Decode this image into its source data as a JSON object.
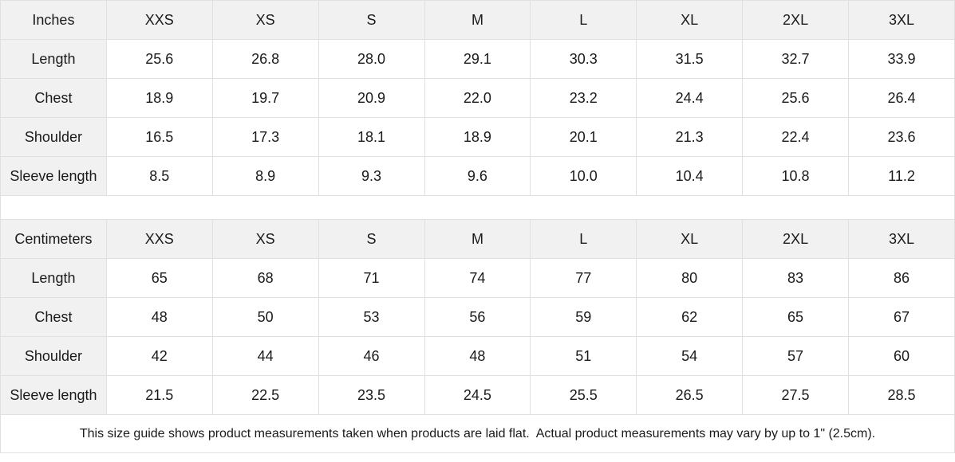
{
  "chart_data": [
    {
      "type": "table",
      "unit_label": "Inches",
      "columns": [
        "XXS",
        "XS",
        "S",
        "M",
        "L",
        "XL",
        "2XL",
        "3XL"
      ],
      "rows": [
        {
          "label": "Length",
          "values": [
            "25.6",
            "26.8",
            "28.0",
            "29.1",
            "30.3",
            "31.5",
            "32.7",
            "33.9"
          ]
        },
        {
          "label": "Chest",
          "values": [
            "18.9",
            "19.7",
            "20.9",
            "22.0",
            "23.2",
            "24.4",
            "25.6",
            "26.4"
          ]
        },
        {
          "label": "Shoulder",
          "values": [
            "16.5",
            "17.3",
            "18.1",
            "18.9",
            "20.1",
            "21.3",
            "22.4",
            "23.6"
          ]
        },
        {
          "label": "Sleeve length",
          "values": [
            "8.5",
            "8.9",
            "9.3",
            "9.6",
            "10.0",
            "10.4",
            "10.8",
            "11.2"
          ]
        }
      ]
    },
    {
      "type": "table",
      "unit_label": "Centimeters",
      "columns": [
        "XXS",
        "XS",
        "S",
        "M",
        "L",
        "XL",
        "2XL",
        "3XL"
      ],
      "rows": [
        {
          "label": "Length",
          "values": [
            "65",
            "68",
            "71",
            "74",
            "77",
            "80",
            "83",
            "86"
          ]
        },
        {
          "label": "Chest",
          "values": [
            "48",
            "50",
            "53",
            "56",
            "59",
            "62",
            "65",
            "67"
          ]
        },
        {
          "label": "Shoulder",
          "values": [
            "42",
            "44",
            "46",
            "48",
            "51",
            "54",
            "57",
            "60"
          ]
        },
        {
          "label": "Sleeve length",
          "values": [
            "21.5",
            "22.5",
            "23.5",
            "24.5",
            "25.5",
            "26.5",
            "27.5",
            "28.5"
          ]
        }
      ]
    }
  ],
  "footer": {
    "note": "This size guide shows product measurements taken when products are laid flat.  Actual product measurements may vary by up to 1\" (2.5cm)."
  },
  "colors": {
    "header_bg": "#f1f1f1",
    "border": "#e0e0e0",
    "text": "#1a1a1a",
    "background": "#ffffff"
  }
}
